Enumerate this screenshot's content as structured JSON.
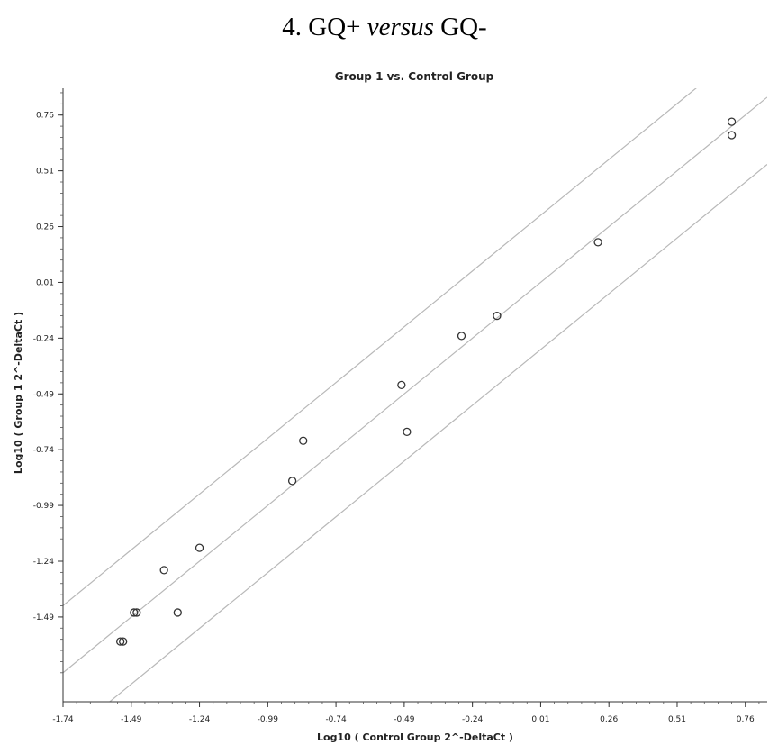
{
  "heading": {
    "prefix": "4. GQ+ ",
    "italic": "versus",
    "suffix": " GQ-"
  },
  "chart_data": {
    "type": "scatter",
    "title": "Group 1 vs. Control Group",
    "xlabel": "Log10 ( Control Group 2^-DeltaCt )",
    "ylabel": "Log10 ( Group 1 2^-DeltaCt )",
    "xlim": [
      -1.74,
      0.84
    ],
    "ylim": [
      -1.87,
      0.88
    ],
    "xticks": [
      -1.74,
      -1.49,
      -1.24,
      -0.99,
      -0.74,
      -0.49,
      -0.24,
      0.01,
      0.26,
      0.51,
      0.76
    ],
    "xtick_labels": [
      "-1.74",
      "-1.49",
      "-1.24",
      "-0.99",
      "-0.74",
      "-0.49",
      "-0.24",
      "0.01",
      "0.26",
      "0.51",
      "0.76"
    ],
    "yticks": [
      0.76,
      0.51,
      0.26,
      0.01,
      -0.24,
      -0.49,
      -0.74,
      -0.99,
      -1.24,
      -1.49
    ],
    "ytick_labels": [
      "0.76",
      "0.51",
      "0.26",
      "0.01",
      "-0.24",
      "-0.49",
      "-0.74",
      "-0.99",
      "-1.24",
      "-1.49"
    ],
    "reference_lines": [
      {
        "slope": 1,
        "intercept": 0.301
      },
      {
        "slope": 1,
        "intercept": 0
      },
      {
        "slope": 1,
        "intercept": -0.301
      }
    ],
    "points": [
      {
        "x": 0.71,
        "y": 0.73
      },
      {
        "x": 0.71,
        "y": 0.67
      },
      {
        "x": 0.22,
        "y": 0.19
      },
      {
        "x": -0.15,
        "y": -0.14
      },
      {
        "x": -0.28,
        "y": -0.23
      },
      {
        "x": -0.5,
        "y": -0.45
      },
      {
        "x": -0.48,
        "y": -0.66
      },
      {
        "x": -0.86,
        "y": -0.7
      },
      {
        "x": -0.9,
        "y": -0.88
      },
      {
        "x": -1.24,
        "y": -1.18
      },
      {
        "x": -1.37,
        "y": -1.28
      },
      {
        "x": -1.47,
        "y": -1.47
      },
      {
        "x": -1.48,
        "y": -1.47
      },
      {
        "x": -1.32,
        "y": -1.47
      },
      {
        "x": -1.52,
        "y": -1.6
      },
      {
        "x": -1.53,
        "y": -1.6
      }
    ]
  }
}
